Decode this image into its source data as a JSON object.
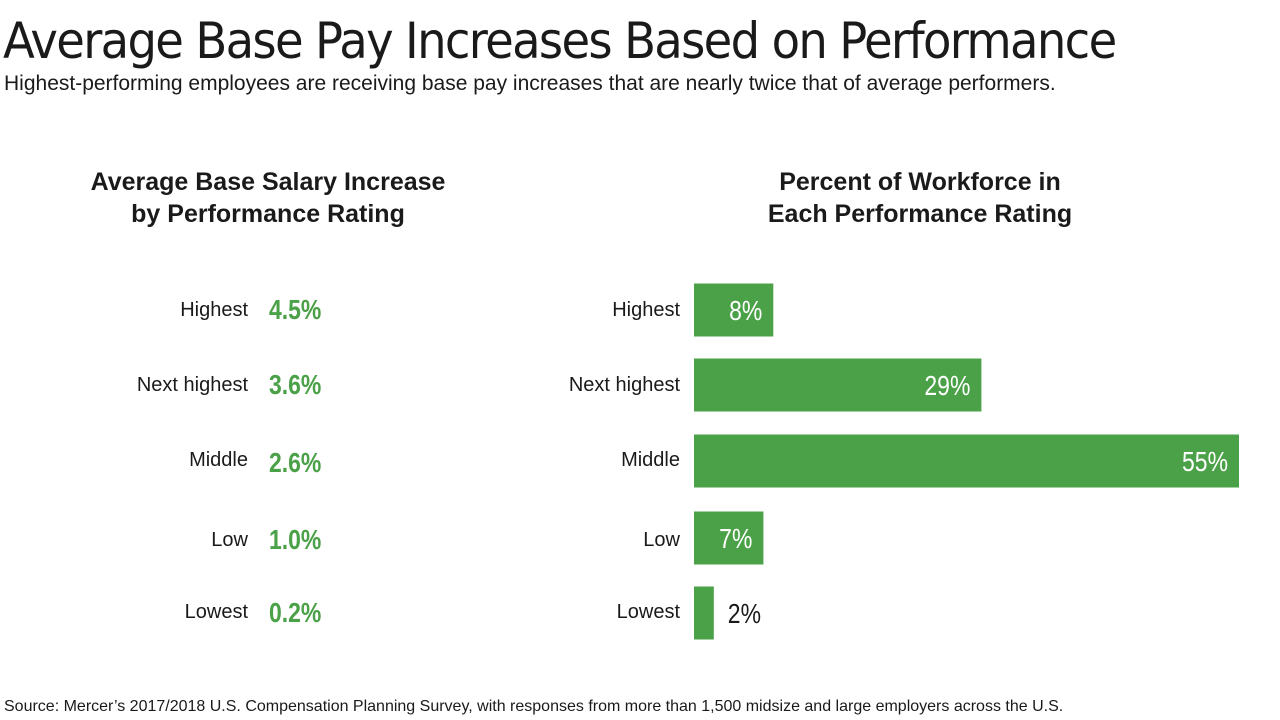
{
  "title": "Average Base Pay Increases Based on Performance",
  "subtitle": "Highest-performing employees are receiving base pay increases that are nearly twice that of average performers.",
  "source": "Source: Mercer’s 2017/2018 U.S. Compensation Planning Survey, with responses from more than 1,500 midsize and large employers across the U.S.",
  "colors": {
    "accent": "#4ba147",
    "text": "#1a1a1a",
    "bar_text_inside": "#ffffff"
  },
  "chart_data": [
    {
      "type": "table",
      "title_lines": [
        "Average Base Salary Increase",
        "by Performance Rating"
      ],
      "categories": [
        "Highest",
        "Next highest",
        "Middle",
        "Low",
        "Lowest"
      ],
      "values": [
        4.5,
        3.6,
        2.6,
        1.0,
        0.2
      ],
      "labels": [
        "4.5%",
        "3.6%",
        "2.6%",
        "1.0%",
        "0.2%"
      ],
      "unit": "%"
    },
    {
      "type": "bar",
      "orientation": "horizontal",
      "title_lines": [
        "Percent of Workforce in",
        "Each Performance Rating"
      ],
      "categories": [
        "Highest",
        "Next highest",
        "Middle",
        "Low",
        "Lowest"
      ],
      "values": [
        8,
        29,
        55,
        7,
        2
      ],
      "labels": [
        "8%",
        "29%",
        "55%",
        "7%",
        "2%"
      ],
      "xlim": [
        0,
        55
      ],
      "grid": false,
      "legend": "none"
    }
  ]
}
